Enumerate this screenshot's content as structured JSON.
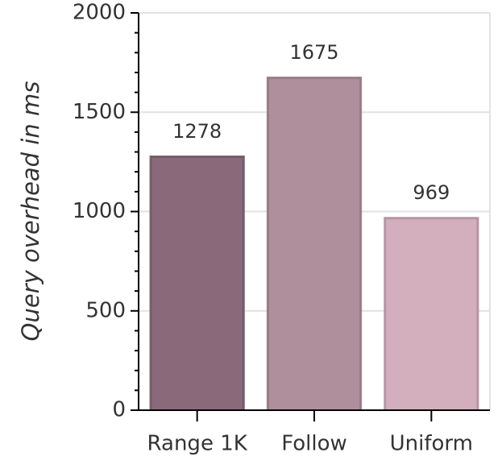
{
  "chart_data": {
    "type": "bar",
    "y_label": "Query overhead in ms",
    "categories": [
      "Range 1K",
      "Follow",
      "Uniform"
    ],
    "values": [
      1278,
      1675,
      969
    ],
    "colors": [
      "#8a6a7a",
      "#b08f9c",
      "#d3aebd"
    ],
    "ylim": [
      0,
      2000
    ],
    "yticks": [
      0,
      500,
      1000,
      1500,
      2000
    ],
    "grid": true
  }
}
